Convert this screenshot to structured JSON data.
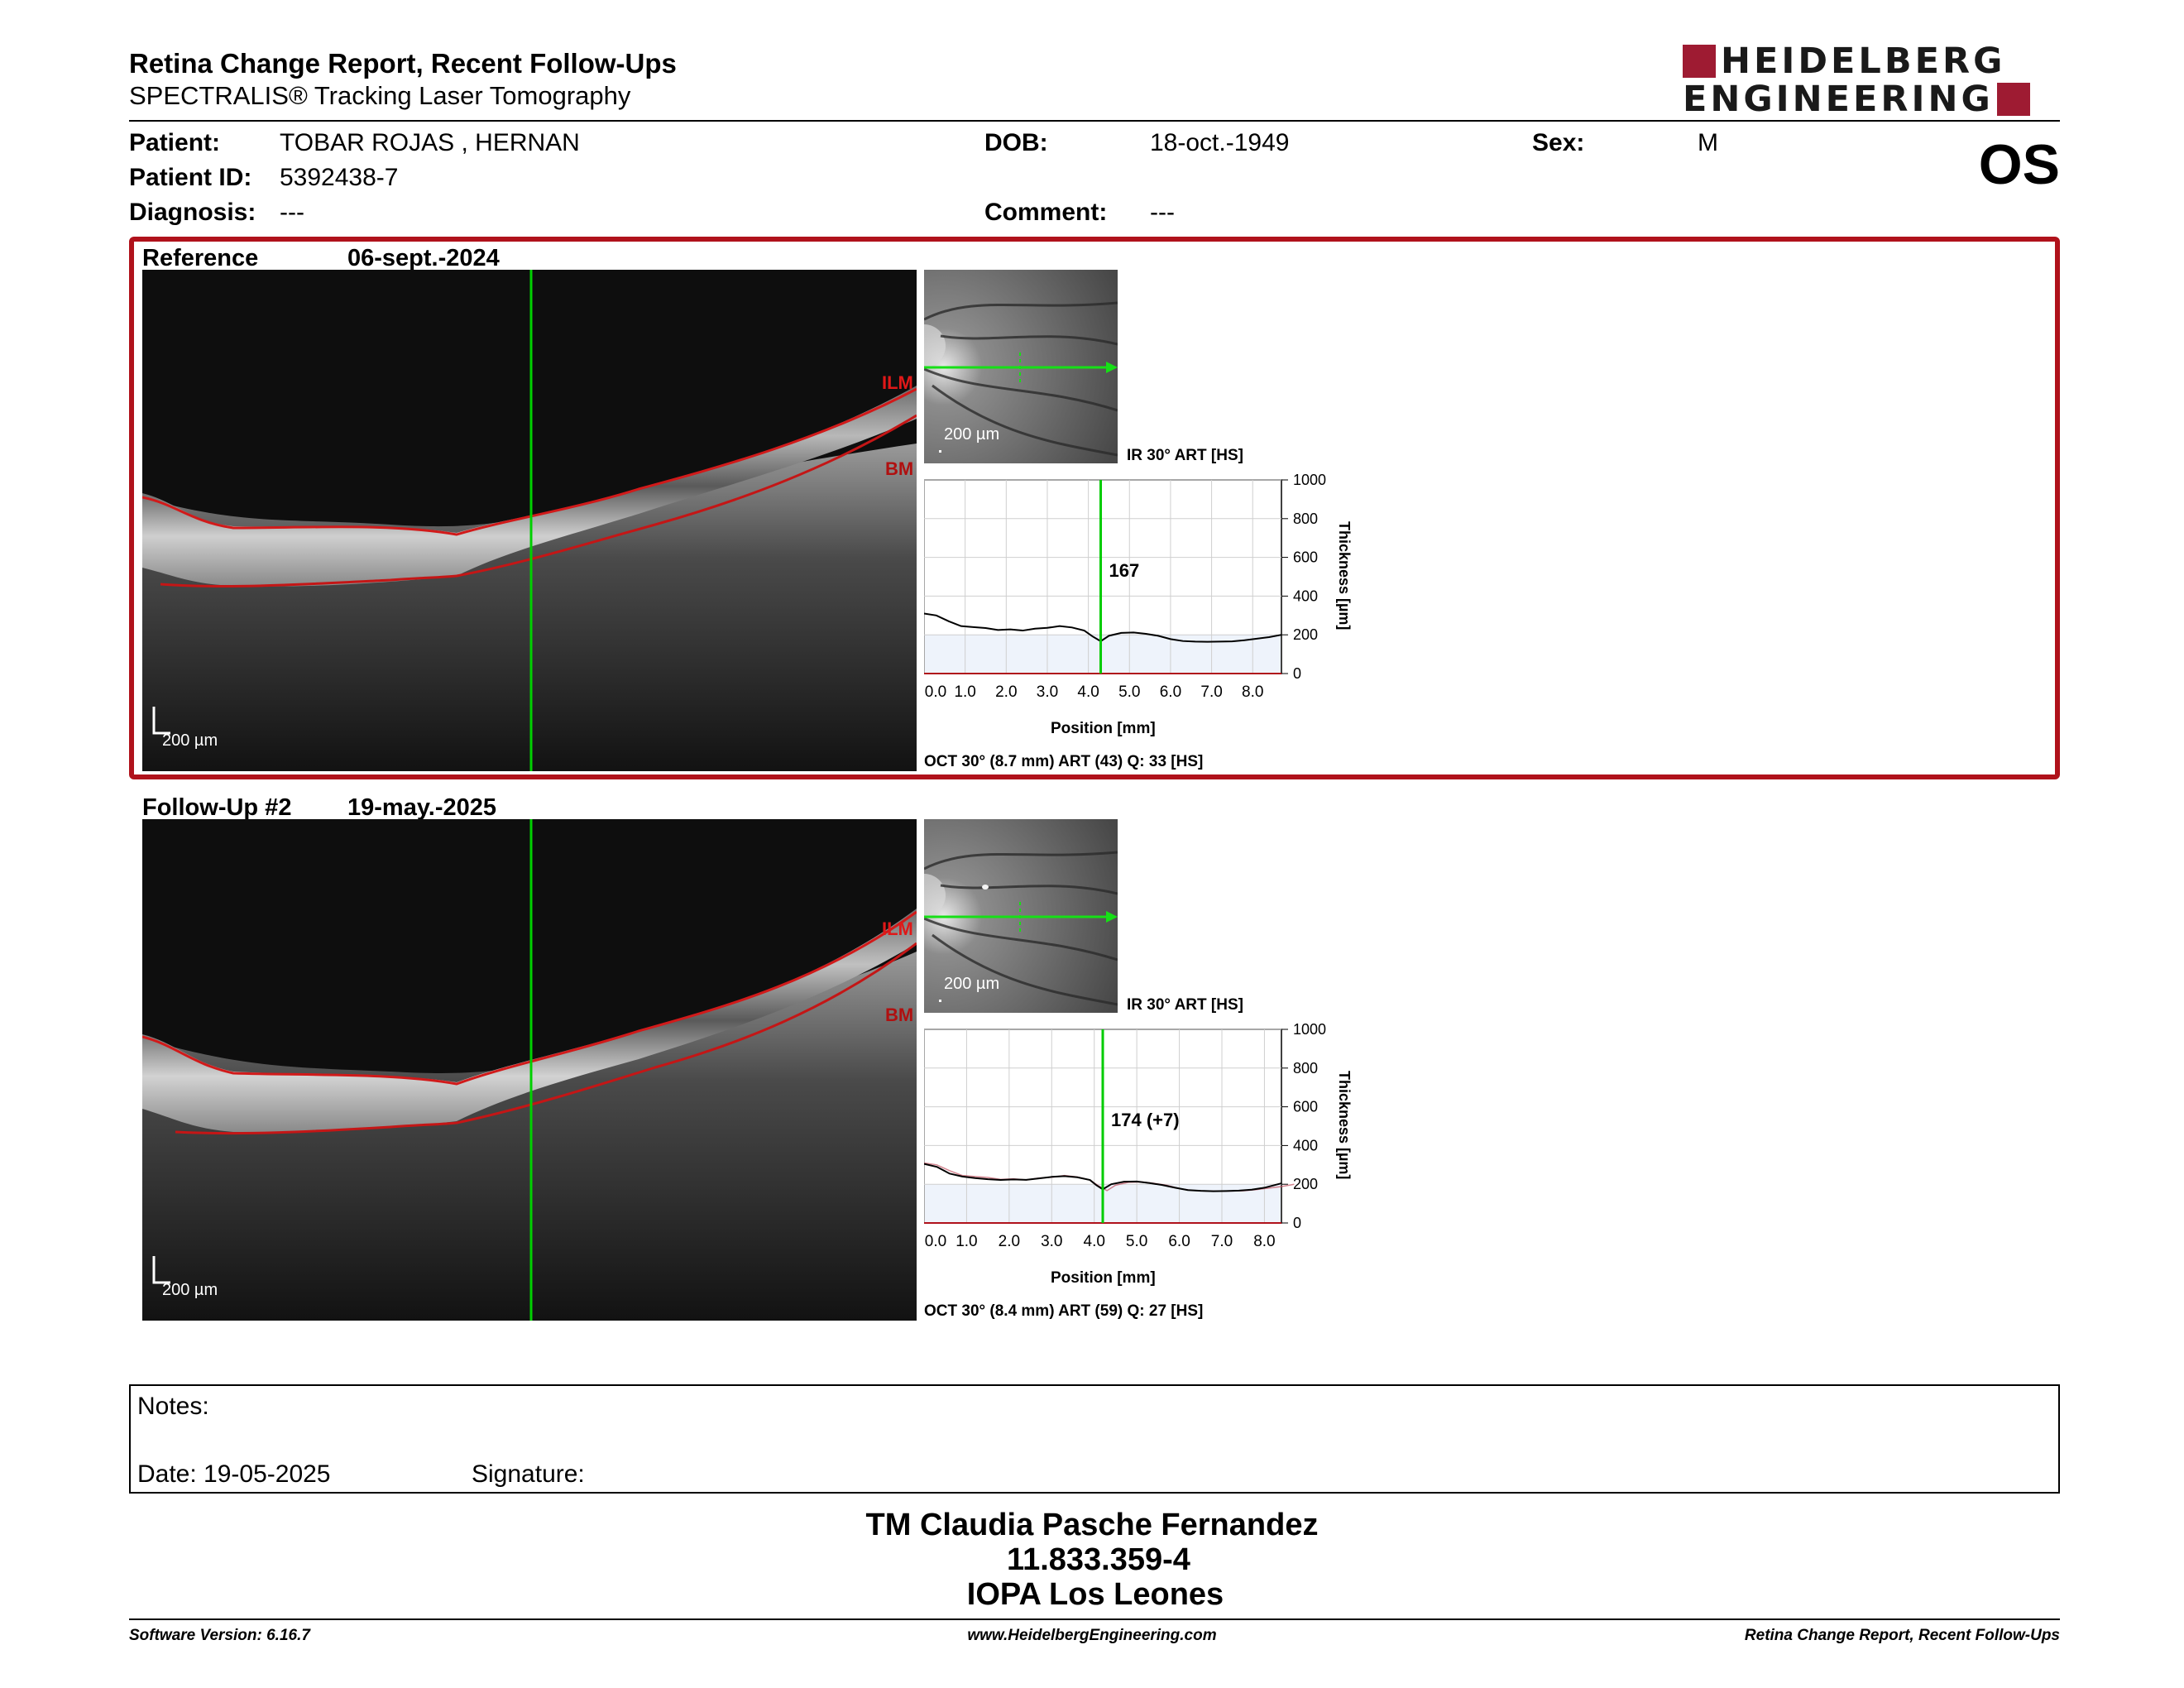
{
  "header": {
    "title": "Retina Change Report, Recent Follow-Ups",
    "subtitle": "SPECTRALIS® Tracking Laser Tomography",
    "logo_line1": "HEIDELBERG",
    "logo_line2": "ENGINEERING",
    "eye": "OS",
    "brand_color": "#9e1b32"
  },
  "patient": {
    "patient_label": "Patient:",
    "patient_value": "TOBAR ROJAS , HERNAN",
    "id_label": "Patient ID:",
    "id_value": "5392438-7",
    "diagnosis_label": "Diagnosis:",
    "diagnosis_value": "---",
    "dob_label": "DOB:",
    "dob_value": "18-oct.-1949",
    "comment_label": "Comment:",
    "comment_value": "---",
    "sex_label": "Sex:",
    "sex_value": "M"
  },
  "exams": [
    {
      "label": "Reference",
      "date": "06-sept.-2024",
      "oct_scale": "200 µm",
      "ir_scale": "200 µm",
      "layer_ilm": "ILM",
      "layer_bm": "BM",
      "ir_caption": "IR 30° ART [HS]",
      "thickness_label": "167",
      "oct_caption": "OCT 30° (8.7 mm) ART (43) Q: 33 [HS]"
    },
    {
      "label": "Follow-Up #2",
      "date": "19-may.-2025",
      "oct_scale": "200 µm",
      "ir_scale": "200 µm",
      "layer_ilm": "ILM",
      "layer_bm": "BM",
      "ir_caption": "IR 30° ART [HS]",
      "thickness_label": "174 (+7)",
      "oct_caption": "OCT 30° (8.4 mm) ART (59) Q: 27 [HS]"
    }
  ],
  "chart_data": [
    {
      "type": "line",
      "xlabel": "Position [mm]",
      "ylabel": "Thickness [µm]",
      "xlim": [
        0,
        8.7
      ],
      "ylim": [
        0,
        1000
      ],
      "x_ticks": [
        "0.0",
        "1.0",
        "2.0",
        "3.0",
        "4.0",
        "5.0",
        "6.0",
        "7.0",
        "8.0"
      ],
      "y_ticks": [
        "1000",
        "800",
        "600",
        "400",
        "200",
        "0"
      ],
      "marker_x": 4.3,
      "series": [
        {
          "x": [
            0.0,
            0.3,
            0.6,
            0.9,
            1.2,
            1.5,
            1.8,
            2.1,
            2.4,
            2.7,
            3.0,
            3.3,
            3.6,
            3.9,
            4.1,
            4.3,
            4.5,
            4.8,
            5.1,
            5.4,
            5.7,
            6.0,
            6.3,
            6.6,
            6.9,
            7.2,
            7.5,
            7.8,
            8.1,
            8.4,
            8.7
          ],
          "y": [
            310,
            300,
            270,
            245,
            240,
            235,
            225,
            228,
            222,
            232,
            236,
            245,
            238,
            222,
            192,
            167,
            195,
            210,
            212,
            205,
            195,
            178,
            168,
            165,
            164,
            165,
            166,
            172,
            180,
            188,
            200
          ]
        }
      ]
    },
    {
      "type": "line",
      "xlabel": "Position [mm]",
      "ylabel": "Thickness [µm]",
      "xlim": [
        0,
        8.4
      ],
      "ylim": [
        0,
        1000
      ],
      "x_ticks": [
        "0.0",
        "1.0",
        "2.0",
        "3.0",
        "4.0",
        "5.0",
        "6.0",
        "7.0",
        "8.0"
      ],
      "y_ticks": [
        "1000",
        "800",
        "600",
        "400",
        "200",
        "0"
      ],
      "marker_x": 4.2,
      "series": [
        {
          "x": [
            0.0,
            0.3,
            0.6,
            0.9,
            1.2,
            1.5,
            1.8,
            2.1,
            2.4,
            2.7,
            3.0,
            3.3,
            3.6,
            3.9,
            4.05,
            4.2,
            4.4,
            4.7,
            5.0,
            5.3,
            5.6,
            5.9,
            6.2,
            6.5,
            6.8,
            7.1,
            7.4,
            7.7,
            8.0,
            8.4
          ],
          "y": [
            305,
            290,
            255,
            240,
            232,
            226,
            222,
            225,
            223,
            230,
            238,
            242,
            236,
            222,
            195,
            174,
            200,
            213,
            214,
            206,
            196,
            182,
            170,
            166,
            164,
            165,
            167,
            172,
            182,
            205
          ]
        }
      ]
    }
  ],
  "notes": {
    "notes_label": "Notes:",
    "date_label": "Date: 19-05-2025",
    "signature_label": "Signature:"
  },
  "signature": {
    "name": "TM Claudia Pasche Fernandez",
    "id": "11.833.359-4",
    "place": "IOPA Los Leones"
  },
  "footer": {
    "version": "Software Version: 6.16.7",
    "website": "www.HeidelbergEngineering.com",
    "report": "Retina Change Report, Recent Follow-Ups"
  }
}
